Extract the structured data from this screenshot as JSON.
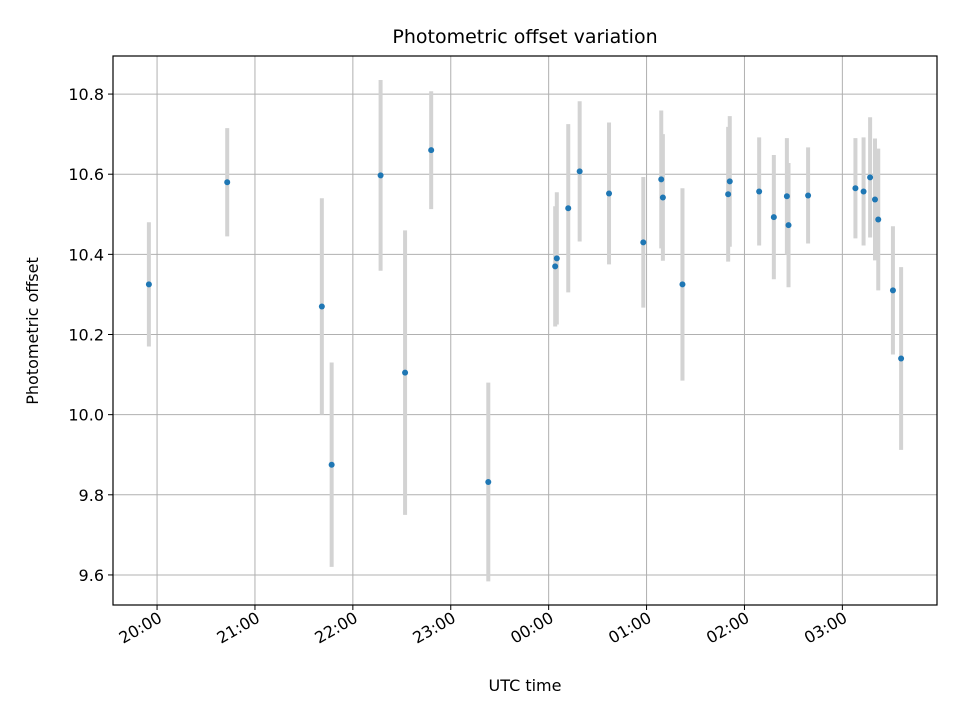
{
  "chart_data": {
    "type": "scatter",
    "title": "Photometric offset variation",
    "xlabel": "UTC time",
    "ylabel": "Photometric offset",
    "xlim": [
      "19:33",
      "03:58"
    ],
    "ylim": [
      9.525,
      10.895
    ],
    "x_ticks": [
      "20:00",
      "21:00",
      "22:00",
      "23:00",
      "00:00",
      "01:00",
      "02:00",
      "03:00"
    ],
    "y_ticks": [
      9.6,
      9.8,
      10.0,
      10.2,
      10.4,
      10.6,
      10.8
    ],
    "grid": true,
    "colors": {
      "point": "#1f77b4",
      "errorbar": "#d3d3d3",
      "grid": "#b0b0b0"
    },
    "points": [
      {
        "x": "19:55",
        "y": 10.325,
        "err": 0.155
      },
      {
        "x": "20:43",
        "y": 10.58,
        "err": 0.135
      },
      {
        "x": "21:41",
        "y": 10.27,
        "err": 0.27
      },
      {
        "x": "21:47",
        "y": 9.875,
        "err": 0.255
      },
      {
        "x": "22:17",
        "y": 10.597,
        "err": 0.238
      },
      {
        "x": "22:32",
        "y": 10.105,
        "err": 0.355
      },
      {
        "x": "22:48",
        "y": 10.66,
        "err": 0.147
      },
      {
        "x": "23:23",
        "y": 9.832,
        "err": 0.248
      },
      {
        "x": "00:04",
        "y": 10.37,
        "err": 0.15
      },
      {
        "x": "00:05",
        "y": 10.39,
        "err": 0.165
      },
      {
        "x": "00:12",
        "y": 10.515,
        "err": 0.21
      },
      {
        "x": "00:19",
        "y": 10.607,
        "err": 0.175
      },
      {
        "x": "00:37",
        "y": 10.552,
        "err": 0.177
      },
      {
        "x": "00:58",
        "y": 10.43,
        "err": 0.163
      },
      {
        "x": "01:09",
        "y": 10.587,
        "err": 0.172
      },
      {
        "x": "01:10",
        "y": 10.542,
        "err": 0.158
      },
      {
        "x": "01:22",
        "y": 10.325,
        "err": 0.24
      },
      {
        "x": "01:50",
        "y": 10.55,
        "err": 0.168
      },
      {
        "x": "01:51",
        "y": 10.582,
        "err": 0.163
      },
      {
        "x": "02:09",
        "y": 10.557,
        "err": 0.135
      },
      {
        "x": "02:18",
        "y": 10.493,
        "err": 0.155
      },
      {
        "x": "02:26",
        "y": 10.545,
        "err": 0.145
      },
      {
        "x": "02:27",
        "y": 10.473,
        "err": 0.155
      },
      {
        "x": "02:39",
        "y": 10.547,
        "err": 0.12
      },
      {
        "x": "03:08",
        "y": 10.565,
        "err": 0.125
      },
      {
        "x": "03:13",
        "y": 10.557,
        "err": 0.135
      },
      {
        "x": "03:17",
        "y": 10.592,
        "err": 0.15
      },
      {
        "x": "03:20",
        "y": 10.537,
        "err": 0.152
      },
      {
        "x": "03:22",
        "y": 10.487,
        "err": 0.177
      },
      {
        "x": "03:31",
        "y": 10.31,
        "err": 0.16
      },
      {
        "x": "03:36",
        "y": 10.14,
        "err": 0.228
      }
    ]
  }
}
